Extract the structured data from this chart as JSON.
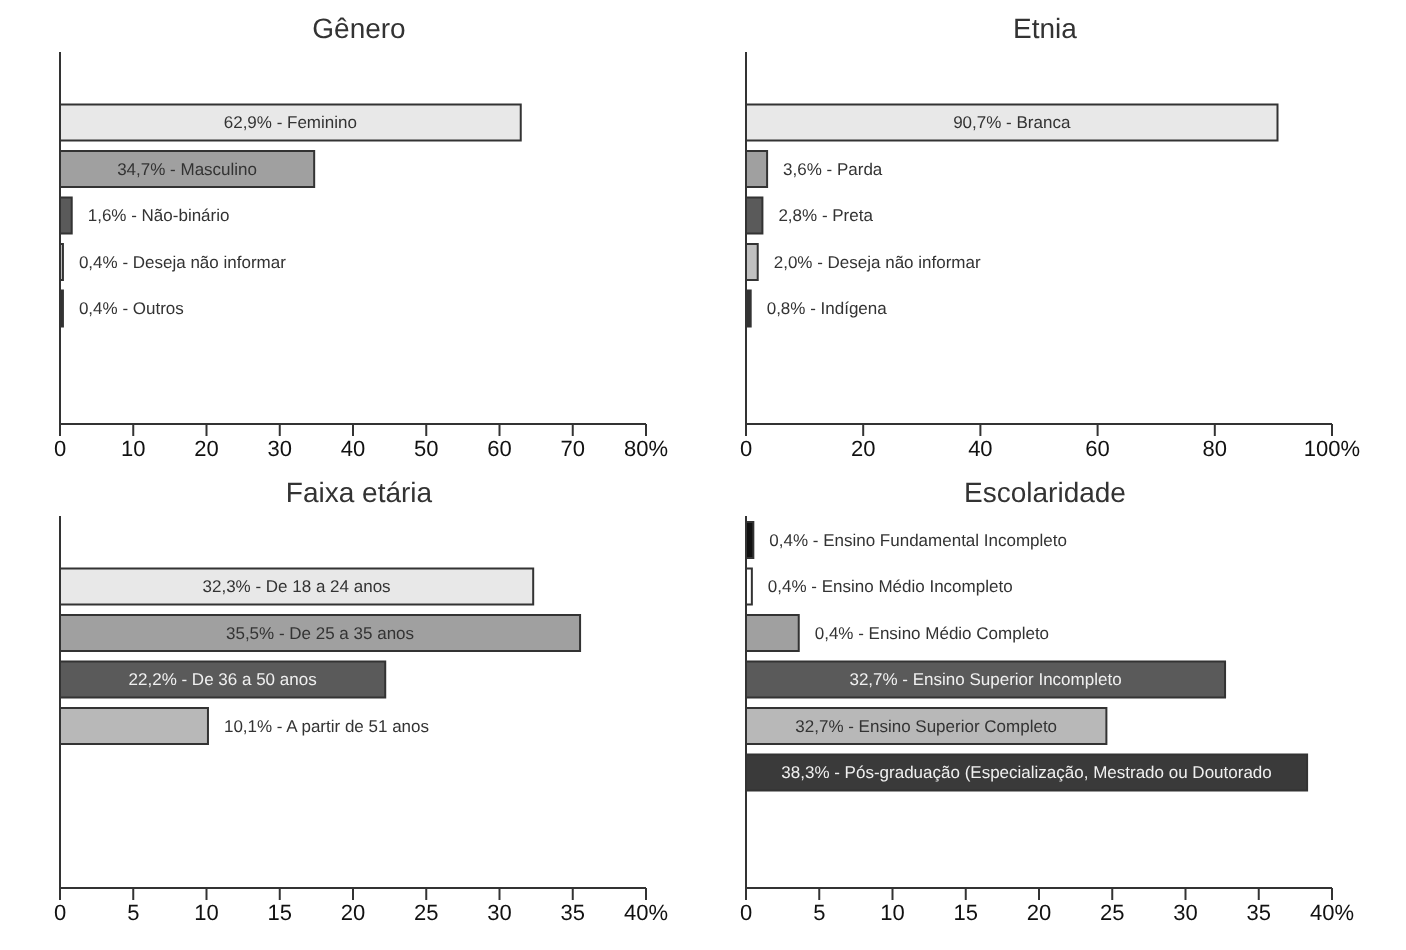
{
  "chart_data": [
    {
      "type": "bar",
      "orientation": "horizontal",
      "title": "Gênero",
      "categories": [
        "62,9% - Feminino",
        "34,7% - Masculino",
        "1,6% - Não-binário",
        "0,4% - Deseja não informar",
        "0,4% - Outros"
      ],
      "values": [
        62.9,
        34.7,
        1.6,
        0.4,
        0.4
      ],
      "colors": [
        "#e8e8e8",
        "#a0a0a0",
        "#5a5a5a",
        "#c8c8c8",
        "#333333"
      ],
      "xlim": [
        0,
        80
      ],
      "xticks": [
        0,
        10,
        20,
        30,
        40,
        50,
        60,
        70,
        {
          "value": 80,
          "label": "80%"
        }
      ],
      "grid": false,
      "legend": false
    },
    {
      "type": "bar",
      "orientation": "horizontal",
      "title": "Etnia",
      "categories": [
        "90,7% - Branca",
        "3,6% - Parda",
        "2,8% - Preta",
        "2,0% - Deseja não informar",
        "0,8% - Indígena"
      ],
      "values": [
        90.7,
        3.6,
        2.8,
        2.0,
        0.8
      ],
      "colors": [
        "#e8e8e8",
        "#a0a0a0",
        "#5a5a5a",
        "#c0c0c0",
        "#333333"
      ],
      "xlim": [
        0,
        100
      ],
      "xticks": [
        0,
        20,
        40,
        60,
        80,
        {
          "value": 100,
          "label": "100%"
        }
      ],
      "grid": false,
      "legend": false
    },
    {
      "type": "bar",
      "orientation": "horizontal",
      "title": "Faixa etária",
      "categories": [
        "32,3% - De 18 a 24 anos",
        "35,5% - De 25 a 35 anos",
        "22,2% - De 36 a 50 anos",
        "10,1% - A partir de 51 anos"
      ],
      "values": [
        32.3,
        35.5,
        22.2,
        10.1
      ],
      "colors": [
        "#e8e8e8",
        "#a0a0a0",
        "#5a5a5a",
        "#b8b8b8"
      ],
      "xlim": [
        0,
        40
      ],
      "xticks": [
        0,
        5,
        10,
        15,
        20,
        25,
        30,
        35,
        {
          "value": 40,
          "label": "40%"
        }
      ],
      "grid": false,
      "legend": false
    },
    {
      "type": "bar",
      "orientation": "horizontal",
      "title": "Escolaridade",
      "categories": [
        "0,4% - Ensino Fundamental Incompleto",
        "0,4% - Ensino Médio Incompleto",
        "0,4% - Ensino Médio Completo",
        "32,7% - Ensino Superior Incompleto",
        "32,7% - Ensino Superior Completo",
        "38,3% - Pós-graduação (Especialização, Mestrado ou Doutorado"
      ],
      "values": [
        0.5,
        0.4,
        3.6,
        32.7,
        24.6,
        38.3
      ],
      "colors": [
        "#111111",
        "#ffffff",
        "#a0a0a0",
        "#5a5a5a",
        "#b8b8b8",
        "#3a3a3a"
      ],
      "xlim": [
        0,
        40
      ],
      "xticks": [
        0,
        5,
        10,
        15,
        20,
        25,
        30,
        35,
        {
          "value": 40,
          "label": "40%"
        }
      ],
      "grid": false,
      "legend": false
    }
  ]
}
